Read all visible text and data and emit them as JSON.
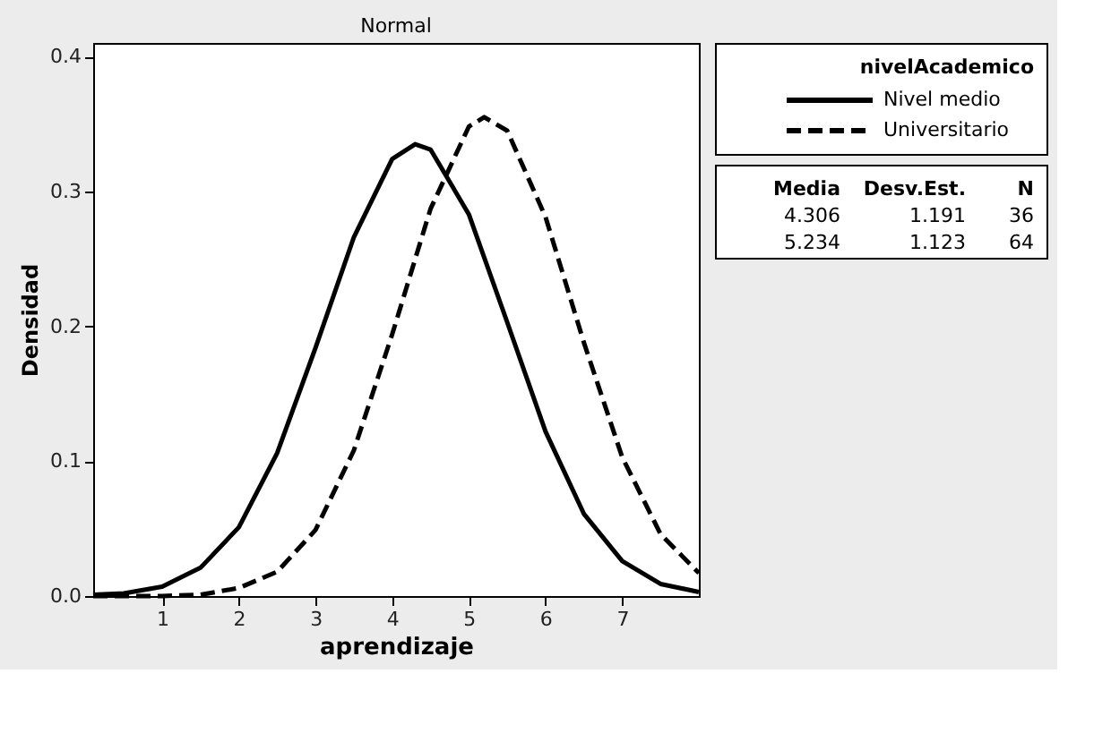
{
  "chart_data": {
    "type": "line",
    "title": "Normal",
    "xlabel": "aprendizaje",
    "ylabel": "Densidad",
    "legend_title": "nivelAcademico",
    "series": [
      {
        "name": "Nivel medio",
        "color": "#000000",
        "line_style": "solid",
        "x": [
          0.1,
          0.5,
          1,
          1.5,
          2,
          2.5,
          3,
          3.5,
          4,
          4.3,
          4.5,
          5,
          5.5,
          6,
          6.5,
          7,
          7.5,
          8
        ],
        "values": [
          0.001,
          0.002,
          0.007,
          0.021,
          0.051,
          0.106,
          0.184,
          0.266,
          0.324,
          0.335,
          0.331,
          0.283,
          0.203,
          0.122,
          0.061,
          0.026,
          0.009,
          0.003
        ]
      },
      {
        "name": "Universitario",
        "color": "#000000",
        "line_style": "dashed",
        "x": [
          0.1,
          0.5,
          1,
          1.5,
          2,
          2.5,
          3,
          3.5,
          4,
          4.5,
          5,
          5.2,
          5.5,
          6,
          6.5,
          7,
          7.5,
          8
        ],
        "values": [
          0.0,
          0.0,
          0.0,
          0.001,
          0.006,
          0.018,
          0.049,
          0.108,
          0.194,
          0.287,
          0.348,
          0.355,
          0.345,
          0.281,
          0.188,
          0.103,
          0.046,
          0.017
        ]
      }
    ],
    "xlim": [
      0.1,
      8.0
    ],
    "ylim": [
      0,
      0.41
    ],
    "xticks": [
      1,
      2,
      3,
      4,
      5,
      6,
      7
    ],
    "yticks": [
      {
        "value": 0,
        "label": "0.0"
      },
      0.1,
      0.2,
      0.3,
      0.4
    ],
    "grid": false,
    "legend": "right",
    "annotations": [
      "Media Desv.Est. N",
      "4.306 1.191 36",
      "5.234 1.123 64"
    ]
  }
}
